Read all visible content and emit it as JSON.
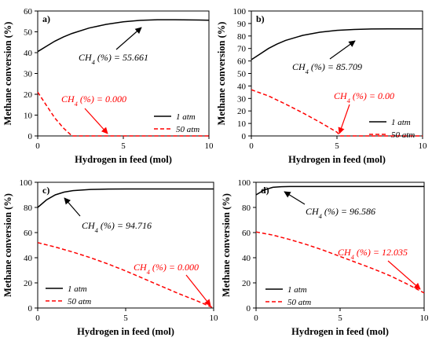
{
  "figure": {
    "xlabel": "Hydrogen in feed (mol)",
    "ylabel": "Methane conversion (%)"
  },
  "legend_labels": [
    "1 atm",
    "50 atm"
  ],
  "colors": {
    "series_1atm": "#000000",
    "series_50atm": "#ff0000",
    "axis": "#000000"
  },
  "chart_data": [
    {
      "type": "line",
      "panel_label": "a)",
      "xlim": [
        0,
        10
      ],
      "xticks": [
        0,
        5,
        10
      ],
      "ylim": [
        0,
        60
      ],
      "yticks": [
        0,
        10,
        20,
        30,
        40,
        50,
        60
      ],
      "series": [
        {
          "name": "1 atm",
          "style": "solid",
          "x": [
            0,
            0.5,
            1,
            1.5,
            2,
            3,
            4,
            5,
            6,
            7,
            8,
            9,
            10
          ],
          "y": [
            40.5,
            43,
            45.5,
            47.5,
            49.2,
            51.8,
            53.6,
            54.8,
            55.5,
            55.8,
            55.8,
            55.7,
            55.6
          ]
        },
        {
          "name": "50 atm",
          "style": "dashed",
          "x": [
            0,
            0.5,
            1,
            1.5,
            2,
            10
          ],
          "y": [
            21,
            14.8,
            8.6,
            3.8,
            0,
            0
          ]
        }
      ],
      "annotations": [
        {
          "text": "CH₄ (%) = 55.661",
          "color": "#000000"
        },
        {
          "text": "CH₄ (%) = 0.000",
          "color": "#ff0000"
        }
      ]
    },
    {
      "type": "line",
      "panel_label": "b)",
      "xlim": [
        0,
        10
      ],
      "xticks": [
        0,
        5,
        10
      ],
      "ylim": [
        0,
        100
      ],
      "yticks": [
        0,
        10,
        20,
        30,
        40,
        50,
        60,
        70,
        80,
        90,
        100
      ],
      "series": [
        {
          "name": "1 atm",
          "style": "solid",
          "x": [
            0,
            0.5,
            1,
            1.5,
            2,
            3,
            4,
            5,
            6,
            7,
            8,
            9,
            10
          ],
          "y": [
            61,
            65.5,
            70,
            73.5,
            76.5,
            80.5,
            83,
            84.5,
            85.2,
            85.6,
            85.7,
            85.7,
            85.7
          ]
        },
        {
          "name": "50 atm",
          "style": "dashed",
          "x": [
            0,
            1,
            2,
            3,
            4,
            5,
            5.2,
            10
          ],
          "y": [
            37,
            32,
            25.5,
            18.5,
            11,
            3,
            0,
            0
          ]
        }
      ],
      "annotations": [
        {
          "text": "CH₄ (%) = 85.709",
          "color": "#000000"
        },
        {
          "text": "CH₄ (%) = 0.00",
          "color": "#ff0000"
        }
      ]
    },
    {
      "type": "line",
      "panel_label": "c)",
      "xlim": [
        0,
        10
      ],
      "xticks": [
        0,
        5,
        10
      ],
      "ylim": [
        0,
        100
      ],
      "yticks": [
        0,
        20,
        40,
        60,
        80,
        100
      ],
      "series": [
        {
          "name": "1 atm",
          "style": "solid",
          "x": [
            0,
            0.5,
            1,
            1.5,
            2,
            3,
            4,
            5,
            6,
            7,
            8,
            9,
            10
          ],
          "y": [
            80,
            86,
            90,
            92.2,
            93.4,
            94.3,
            94.6,
            94.7,
            94.7,
            94.7,
            94.7,
            94.7,
            94.7
          ]
        },
        {
          "name": "50 atm",
          "style": "dashed",
          "x": [
            0,
            1,
            2,
            3,
            4,
            5,
            6,
            7,
            8,
            9,
            10
          ],
          "y": [
            52,
            48.5,
            44.5,
            40,
            35,
            29.5,
            23.5,
            17.5,
            11.5,
            6,
            0
          ]
        }
      ],
      "annotations": [
        {
          "text": "CH₄ (%) = 94.716",
          "color": "#000000"
        },
        {
          "text": "CH₄ (%) = 0.000",
          "color": "#ff0000"
        }
      ]
    },
    {
      "type": "line",
      "panel_label": "d)",
      "xlim": [
        0,
        10
      ],
      "xticks": [
        0,
        5,
        10
      ],
      "ylim": [
        0,
        100
      ],
      "yticks": [
        0,
        20,
        40,
        60,
        80,
        100
      ],
      "series": [
        {
          "name": "1 atm",
          "style": "solid",
          "x": [
            0,
            0.5,
            1,
            1.5,
            2,
            3,
            4,
            5,
            6,
            7,
            8,
            9,
            10
          ],
          "y": [
            90,
            94,
            96,
            96.5,
            96.6,
            96.6,
            96.6,
            96.6,
            96.6,
            96.6,
            96.6,
            96.6,
            96.6
          ]
        },
        {
          "name": "50 atm",
          "style": "dashed",
          "x": [
            0,
            1,
            2,
            3,
            4,
            5,
            6,
            7,
            8,
            9,
            10
          ],
          "y": [
            60.5,
            58,
            54.5,
            50.5,
            46,
            41,
            36,
            31,
            25.5,
            19,
            12
          ]
        }
      ],
      "annotations": [
        {
          "text": "CH₄ (%) = 96.586",
          "color": "#000000"
        },
        {
          "text": "CH₄ (%) = 12.035",
          "color": "#ff0000"
        }
      ]
    }
  ]
}
